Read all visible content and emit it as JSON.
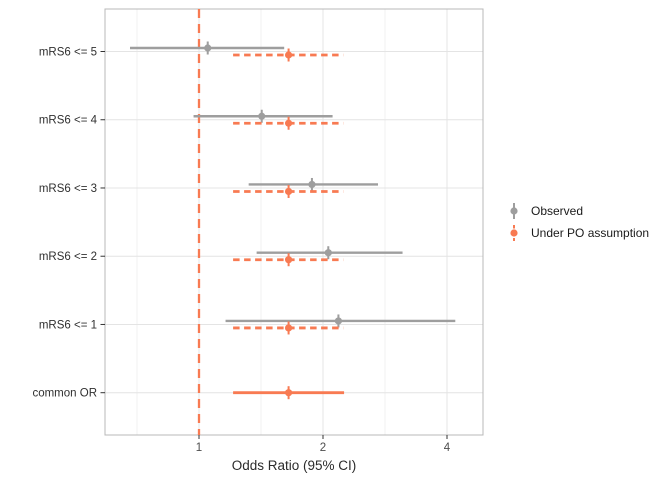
{
  "chart_data": {
    "type": "scatter",
    "subtype": "forest-pointrange",
    "title": "",
    "xlabel": "Odds Ratio (95% CI)",
    "ylabel": "",
    "x_scale": "log2",
    "xlim": [
      0.585,
      4.85
    ],
    "grid": true,
    "legend_position": "right",
    "x_ticks": [
      {
        "value": 1,
        "label": "1"
      },
      {
        "value": 2,
        "label": "2"
      },
      {
        "value": 4,
        "label": "4"
      }
    ],
    "x_minor_ticks": [
      0.7071,
      1.4142,
      2.8284
    ],
    "reference_line": {
      "x": 1,
      "style": "dashed"
    },
    "categories": [
      "mRS6 <= 5",
      "mRS6 <= 4",
      "mRS6 <= 3",
      "mRS6 <= 2",
      "mRS6 <= 1",
      "common OR"
    ],
    "colors": {
      "observed": "#9E9E9E",
      "po": "#F87A52",
      "reference": "#F87A52",
      "grid_major": "#E4E4E4",
      "grid_minor": "#F0F0F0",
      "panel_border": "#B8B8B8",
      "axis_text": "#4D4D4D",
      "label_text": "#303030",
      "tick_mark": "#333333"
    },
    "series": [
      {
        "name": "Observed",
        "color_key": "observed",
        "ci_style": "solid",
        "points": [
          {
            "category": "mRS6 <= 5",
            "or": 1.05,
            "lo": 0.68,
            "hi": 1.61
          },
          {
            "category": "mRS6 <= 4",
            "or": 1.42,
            "lo": 0.97,
            "hi": 2.11
          },
          {
            "category": "mRS6 <= 3",
            "or": 1.88,
            "lo": 1.32,
            "hi": 2.72
          },
          {
            "category": "mRS6 <= 2",
            "or": 2.06,
            "lo": 1.38,
            "hi": 3.12
          },
          {
            "category": "mRS6 <= 1",
            "or": 2.18,
            "lo": 1.16,
            "hi": 4.19
          }
        ]
      },
      {
        "name": "Under PO assumption",
        "color_key": "po",
        "ci_style": "dashed",
        "points": [
          {
            "category": "mRS6 <= 5",
            "or": 1.65,
            "lo": 1.21,
            "hi": 2.24
          },
          {
            "category": "mRS6 <= 4",
            "or": 1.65,
            "lo": 1.21,
            "hi": 2.24
          },
          {
            "category": "mRS6 <= 3",
            "or": 1.65,
            "lo": 1.21,
            "hi": 2.24
          },
          {
            "category": "mRS6 <= 2",
            "or": 1.65,
            "lo": 1.21,
            "hi": 2.24
          },
          {
            "category": "mRS6 <= 1",
            "or": 1.65,
            "lo": 1.21,
            "hi": 2.24
          },
          {
            "category": "common OR",
            "or": 1.65,
            "lo": 1.21,
            "hi": 2.25,
            "ci_style": "solid"
          }
        ]
      }
    ],
    "legend": {
      "entries": [
        {
          "label": "Observed",
          "color_key": "observed",
          "key_style": "solid"
        },
        {
          "label": "Under PO assumption",
          "color_key": "po",
          "key_style": "dashed"
        }
      ]
    }
  }
}
